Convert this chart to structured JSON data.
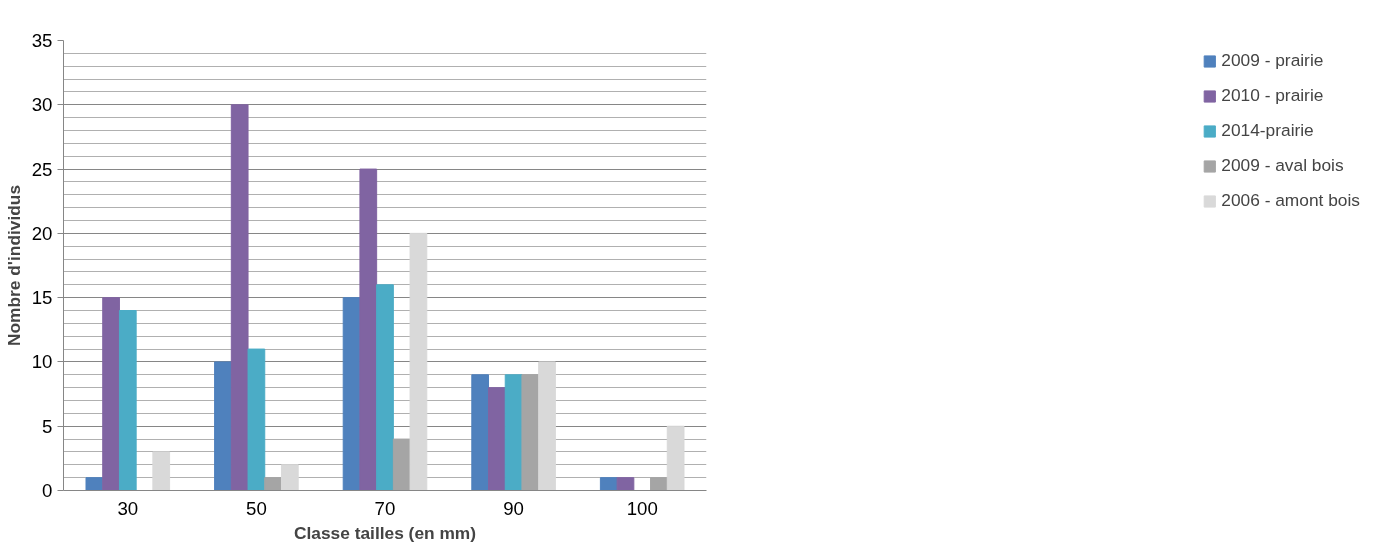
{
  "chart_data": {
    "type": "bar",
    "xlabel": "Classe tailles (en mm)",
    "ylabel": "Nombre d'individus",
    "categories": [
      "30",
      "50",
      "70",
      "90",
      "100"
    ],
    "series": [
      {
        "name": "2009 - prairie",
        "color": "#4f81bd",
        "values": [
          1,
          10,
          15,
          9,
          1
        ]
      },
      {
        "name": "2010 - prairie",
        "color": "#8064a2",
        "values": [
          15,
          30,
          25,
          8,
          1
        ]
      },
      {
        "name": "2014-prairie",
        "color": "#4bacc6",
        "values": [
          14,
          11,
          16,
          9,
          0
        ]
      },
      {
        "name": "2009 - aval bois",
        "color": "#a5a5a5",
        "values": [
          0,
          1,
          4,
          9,
          1
        ]
      },
      {
        "name": "2006 - amont bois",
        "color": "#d9d9d9",
        "values": [
          3,
          2,
          20,
          10,
          5
        ]
      }
    ],
    "ylim": [
      0,
      35
    ],
    "yticks": [
      0,
      5,
      10,
      15,
      20,
      25,
      30,
      35
    ],
    "grid": "y",
    "legend": "right"
  }
}
